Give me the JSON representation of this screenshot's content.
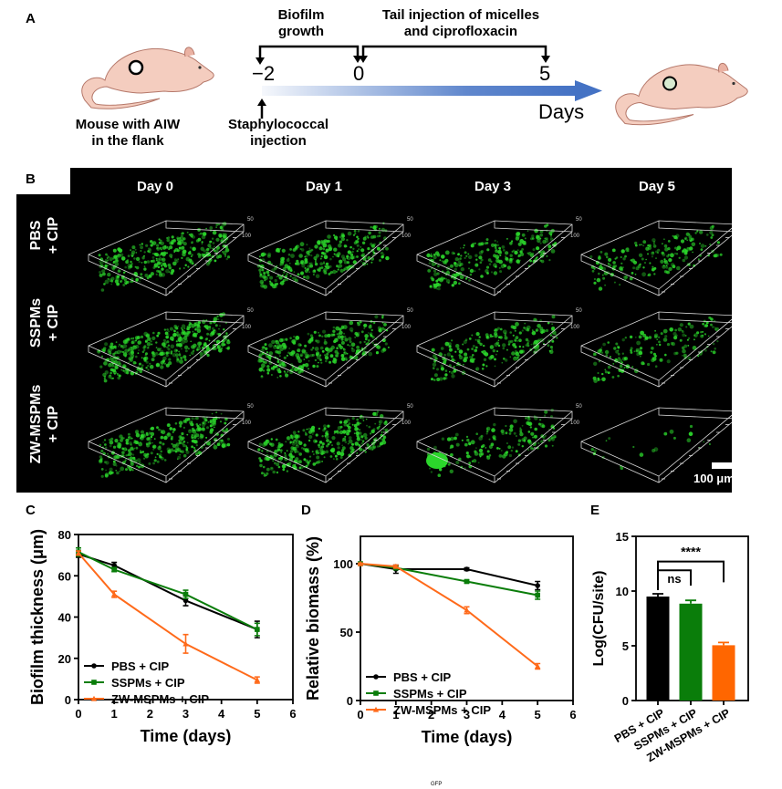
{
  "panels": {
    "A": {
      "letter": "A",
      "mouse_left_caption": [
        "Mouse with AIW",
        "in the flank"
      ],
      "phase1_label": [
        "Biofilm",
        "growth"
      ],
      "phase2_label": [
        "Tail injection of micelles",
        "and ciprofloxacin"
      ],
      "timeline_ticks": [
        "−2",
        "0",
        "5"
      ],
      "timeline_unit": "Days",
      "injection_label": [
        "Staphylococcal",
        "injection"
      ],
      "colors": {
        "mouse_skin": "#f4cdbf",
        "mouse_outline": "#b5786a",
        "timeline_arrow": "#4472c4",
        "healed_wound": "#d8ead0"
      }
    },
    "B": {
      "letter": "B",
      "column_headers": [
        "Day 0",
        "Day 1",
        "Day 3",
        "Day 5"
      ],
      "row_labels": [
        [
          "PBS",
          "+ CIP"
        ],
        [
          "SSPMs",
          "+ CIP"
        ],
        [
          "ZW-MSPMs",
          "+ CIP"
        ]
      ],
      "scale_bar": "100 μm",
      "axis_tick_labels": [
        "50",
        "100"
      ],
      "biofilm_density": [
        [
          0.85,
          0.75,
          0.6,
          0.45
        ],
        [
          0.95,
          0.75,
          0.55,
          0.4
        ],
        [
          0.8,
          0.8,
          0.4,
          0.05
        ]
      ],
      "colors": {
        "background": "#000000",
        "signal": "#2bd62b",
        "box": "#d9d9d9"
      }
    },
    "footer_fragment": "GFP"
  },
  "chart_data": [
    {
      "id": "C",
      "letter": "C",
      "type": "line",
      "title": "",
      "xlabel": "Time (days)",
      "ylabel": "Biofilm thickness (μm)",
      "xlim": [
        0,
        6
      ],
      "ylim": [
        0,
        80
      ],
      "xticks": [
        0,
        1,
        2,
        3,
        4,
        5,
        6
      ],
      "yticks": [
        0,
        20,
        40,
        60,
        80
      ],
      "grid": false,
      "legend_position": "bottom-left",
      "series": [
        {
          "name": "PBS + CIP",
          "color": "#000000",
          "marker": "circle",
          "x": [
            0,
            1,
            3,
            5
          ],
          "y": [
            70.5,
            65,
            48,
            34
          ],
          "err": [
            1.5,
            1.5,
            2.5,
            4
          ]
        },
        {
          "name": "SSPMs + CIP",
          "color": "#0a7d0a",
          "marker": "square",
          "x": [
            0,
            1,
            3,
            5
          ],
          "y": [
            71.5,
            63,
            51,
            34
          ],
          "err": [
            2,
            1,
            2,
            3
          ]
        },
        {
          "name": "ZW-MSPMs + CIP",
          "color": "#ff6a1a",
          "marker": "triangle",
          "x": [
            0,
            1,
            3,
            5
          ],
          "y": [
            71,
            51,
            27,
            9.5
          ],
          "err": [
            1,
            1.5,
            4.5,
            1.5
          ]
        }
      ]
    },
    {
      "id": "D",
      "letter": "D",
      "type": "line",
      "title": "",
      "xlabel": "Time (days)",
      "ylabel": "Relative biomass (%)",
      "xlim": [
        0,
        6
      ],
      "ylim": [
        0,
        120
      ],
      "xticks": [
        0,
        1,
        2,
        3,
        4,
        5,
        6
      ],
      "yticks": [
        0,
        50,
        100
      ],
      "grid": false,
      "legend_position": "bottom-left",
      "series": [
        {
          "name": "PBS + CIP",
          "color": "#000000",
          "marker": "circle",
          "x": [
            0,
            1,
            3,
            5
          ],
          "y": [
            100,
            96,
            96,
            84
          ],
          "err": [
            0.5,
            3,
            1,
            3
          ]
        },
        {
          "name": "SSPMs + CIP",
          "color": "#0a7d0a",
          "marker": "square",
          "x": [
            0,
            1,
            3,
            5
          ],
          "y": [
            100,
            97,
            87,
            77
          ],
          "err": [
            0.5,
            1.5,
            1,
            3
          ]
        },
        {
          "name": "ZW-MSPMs + CIP",
          "color": "#ff6a1a",
          "marker": "triangle",
          "x": [
            0,
            1,
            3,
            5
          ],
          "y": [
            100,
            98,
            66,
            25
          ],
          "err": [
            0.5,
            1,
            2.5,
            2
          ]
        }
      ]
    },
    {
      "id": "E",
      "letter": "E",
      "type": "bar",
      "title": "",
      "xlabel": "",
      "ylabel": "Log(CFU/site)",
      "ylim": [
        0,
        15
      ],
      "yticks": [
        0,
        5,
        10,
        15
      ],
      "grid": false,
      "categories": [
        "PBS + CIP",
        "SSPMs + CIP",
        "ZW-MSPMs + CIP"
      ],
      "values": [
        9.5,
        8.85,
        5.05
      ],
      "errors": [
        0.25,
        0.3,
        0.25
      ],
      "colors": [
        "#000000",
        "#0a7d0a",
        "#ff6600"
      ],
      "annotations": [
        {
          "text": "ns",
          "from": 0,
          "to": 1,
          "level": 11.9
        },
        {
          "text": "****",
          "from": 0,
          "to": 2,
          "level": 12.7
        }
      ]
    }
  ]
}
